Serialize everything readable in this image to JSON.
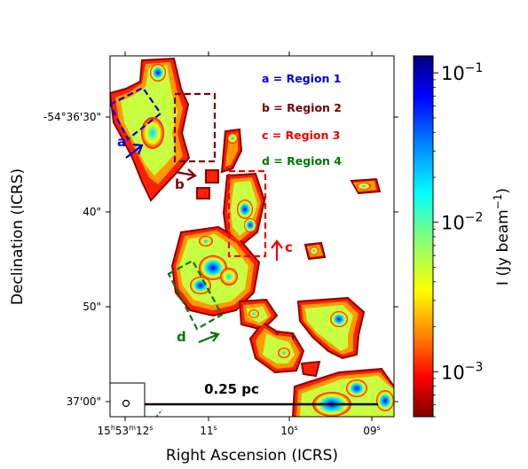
{
  "chart_data": {
    "type": "heatmap",
    "title": "",
    "xlabel": "Right Ascension (ICRS)",
    "ylabel": "Declination (ICRS)",
    "x_ticks": [
      {
        "h": "15",
        "m": "53",
        "s": "12",
        "label_main": "15",
        "label_h": "h",
        "label_mid": "53",
        "label_m": "m",
        "label_end": "12",
        "label_s": "s"
      },
      {
        "label_main": "11",
        "label_s": "s"
      },
      {
        "label_main": "10",
        "label_s": "s"
      },
      {
        "label_main": "09",
        "label_s": "s"
      }
    ],
    "y_ticks": [
      "-54°36'30\"",
      "40\"",
      "50\"",
      "37'00\""
    ],
    "colorbar": {
      "label": "I (Jy beam",
      "label_sup": "−1",
      "label_end": ")",
      "scale": "log",
      "range": [
        0.0005,
        0.13
      ],
      "ticks": [
        {
          "base": "10",
          "exp": "−1",
          "value": 0.1
        },
        {
          "base": "10",
          "exp": "−2",
          "value": 0.01
        },
        {
          "base": "10",
          "exp": "−3",
          "value": 0.001
        }
      ],
      "colormap": "jet"
    },
    "legend": [
      {
        "text": "a = Region 1",
        "color": "#0000dd"
      },
      {
        "text": "b = Region 2",
        "color": "#7a0000"
      },
      {
        "text": "c = Region 3",
        "color": "#ee0000"
      },
      {
        "text": "d = Region 4",
        "color": "#007700"
      }
    ],
    "regions": [
      {
        "letter": "a",
        "color": "#0000dd"
      },
      {
        "letter": "b",
        "color": "#7a0000"
      },
      {
        "letter": "c",
        "color": "#ee0000"
      },
      {
        "letter": "d",
        "color": "#007700"
      }
    ],
    "scalebar": {
      "label": "0.25 pc"
    }
  }
}
